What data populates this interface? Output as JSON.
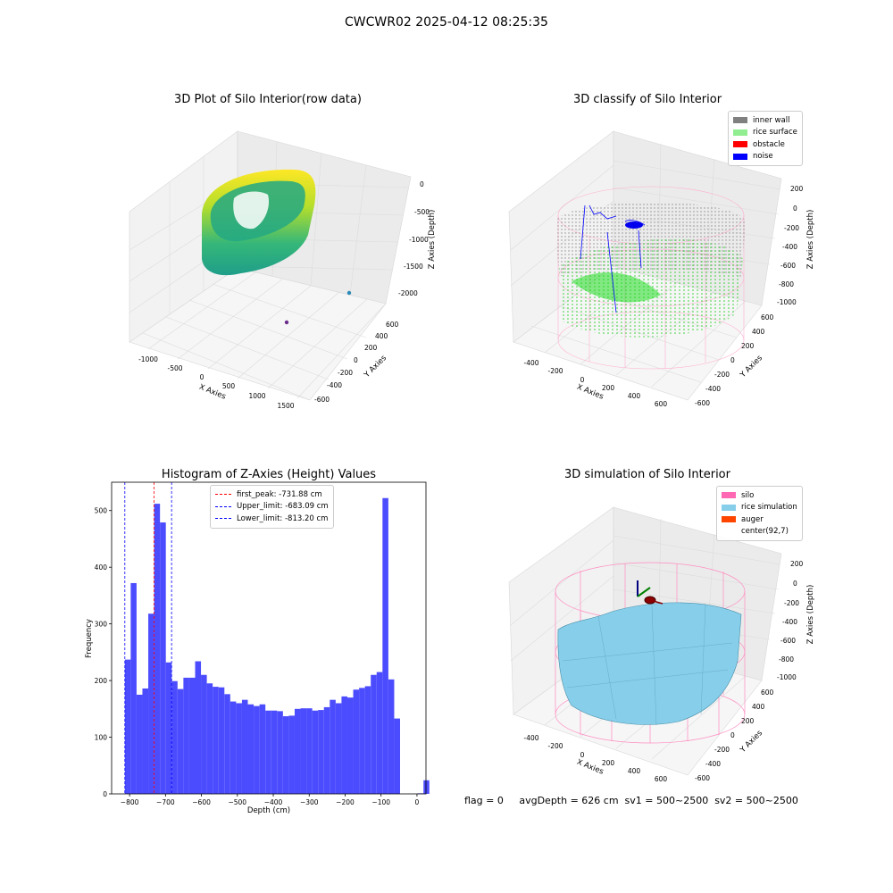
{
  "figure": {
    "suptitle": "CWCWR02 2025-04-12 08:25:35",
    "status_line": "flag = 0     avgDepth = 626 cm  sv1 = 500~2500  sv2 = 500~2500"
  },
  "chart_data": [
    {
      "type": "scatter",
      "title": "3D Plot of Silo Interior(row data)",
      "xlabel": "X Axies",
      "ylabel": "Y Axies",
      "zlabel": "Z Axies (Depth)",
      "x_ticks": [
        "-1000",
        "-500",
        "0",
        "500",
        "1000",
        "1500"
      ],
      "y_ticks": [
        "-600",
        "-400",
        "-200",
        "0",
        "200",
        "400",
        "600"
      ],
      "z_ticks": [
        "0",
        "-500",
        "-1000",
        "-1500",
        "-2000"
      ],
      "colormap": "viridis"
    },
    {
      "type": "scatter",
      "title": "3D classify of Silo Interior",
      "xlabel": "X Axies",
      "ylabel": "Y Axies",
      "zlabel": "Z Axies (Depth)",
      "x_ticks": [
        "-400",
        "-200",
        "0",
        "200",
        "400",
        "600"
      ],
      "y_ticks": [
        "-600",
        "-400",
        "-200",
        "0",
        "200",
        "400",
        "600"
      ],
      "z_ticks": [
        "200",
        "0",
        "-200",
        "-400",
        "-600",
        "-800",
        "-1000"
      ],
      "legend": [
        {
          "label": "inner wall",
          "color": "#808080"
        },
        {
          "label": "rice surface",
          "color": "#90ee90"
        },
        {
          "label": "obstacle",
          "color": "#ff0000"
        },
        {
          "label": "noise",
          "color": "#0000ff"
        }
      ],
      "legend_position": "top-right"
    },
    {
      "type": "bar",
      "title": "Histogram of Z-Axies (Height) Values",
      "xlabel": "Depth (cm)",
      "ylabel": "Frequency",
      "xlim": [
        -850,
        25
      ],
      "ylim": [
        0,
        550
      ],
      "x_ticks": [
        -800,
        -700,
        -600,
        -500,
        -400,
        -300,
        -200,
        -100,
        0
      ],
      "y_ticks": [
        0,
        100,
        200,
        300,
        400,
        500
      ],
      "bin_width": 16.3,
      "bin_start": -813.2,
      "values": [
        237,
        372,
        175,
        186,
        318,
        512,
        479,
        232,
        199,
        185,
        205,
        205,
        234,
        210,
        195,
        189,
        188,
        176,
        163,
        160,
        166,
        158,
        155,
        158,
        147,
        147,
        146,
        137,
        138,
        150,
        151,
        151,
        147,
        148,
        153,
        166,
        160,
        172,
        170,
        184,
        187,
        190,
        210,
        215,
        522,
        202,
        133,
        0,
        0,
        0,
        1,
        24
      ],
      "bar_color": "#4c4cff",
      "vlines": [
        {
          "label": "first_peak: -731.88 cm",
          "x": -731.88,
          "color": "#ff0000"
        },
        {
          "label": "Upper_limit: -683.09 cm",
          "x": -683.09,
          "color": "#0000ff"
        },
        {
          "label": "Lower_limit: -813.20 cm",
          "x": -813.2,
          "color": "#0000ff"
        }
      ],
      "legend_position": "top-center"
    },
    {
      "type": "scatter",
      "title": "3D simulation of Silo Interior",
      "xlabel": "X Axies",
      "ylabel": "Y Axies",
      "zlabel": "Z Axies (Depth)",
      "x_ticks": [
        "-400",
        "-200",
        "0",
        "200",
        "400",
        "600"
      ],
      "y_ticks": [
        "-600",
        "-400",
        "-200",
        "0",
        "200",
        "400",
        "600"
      ],
      "z_ticks": [
        "200",
        "0",
        "-200",
        "-400",
        "-600",
        "-800",
        "-1000"
      ],
      "legend": [
        {
          "label": "silo",
          "color": "#ff69b4"
        },
        {
          "label": "rice simulation",
          "color": "#87ceeb"
        },
        {
          "label": "auger",
          "color": "#ff4500"
        },
        {
          "label": "center(92,7)",
          "color": ""
        }
      ],
      "legend_position": "top-right"
    }
  ]
}
